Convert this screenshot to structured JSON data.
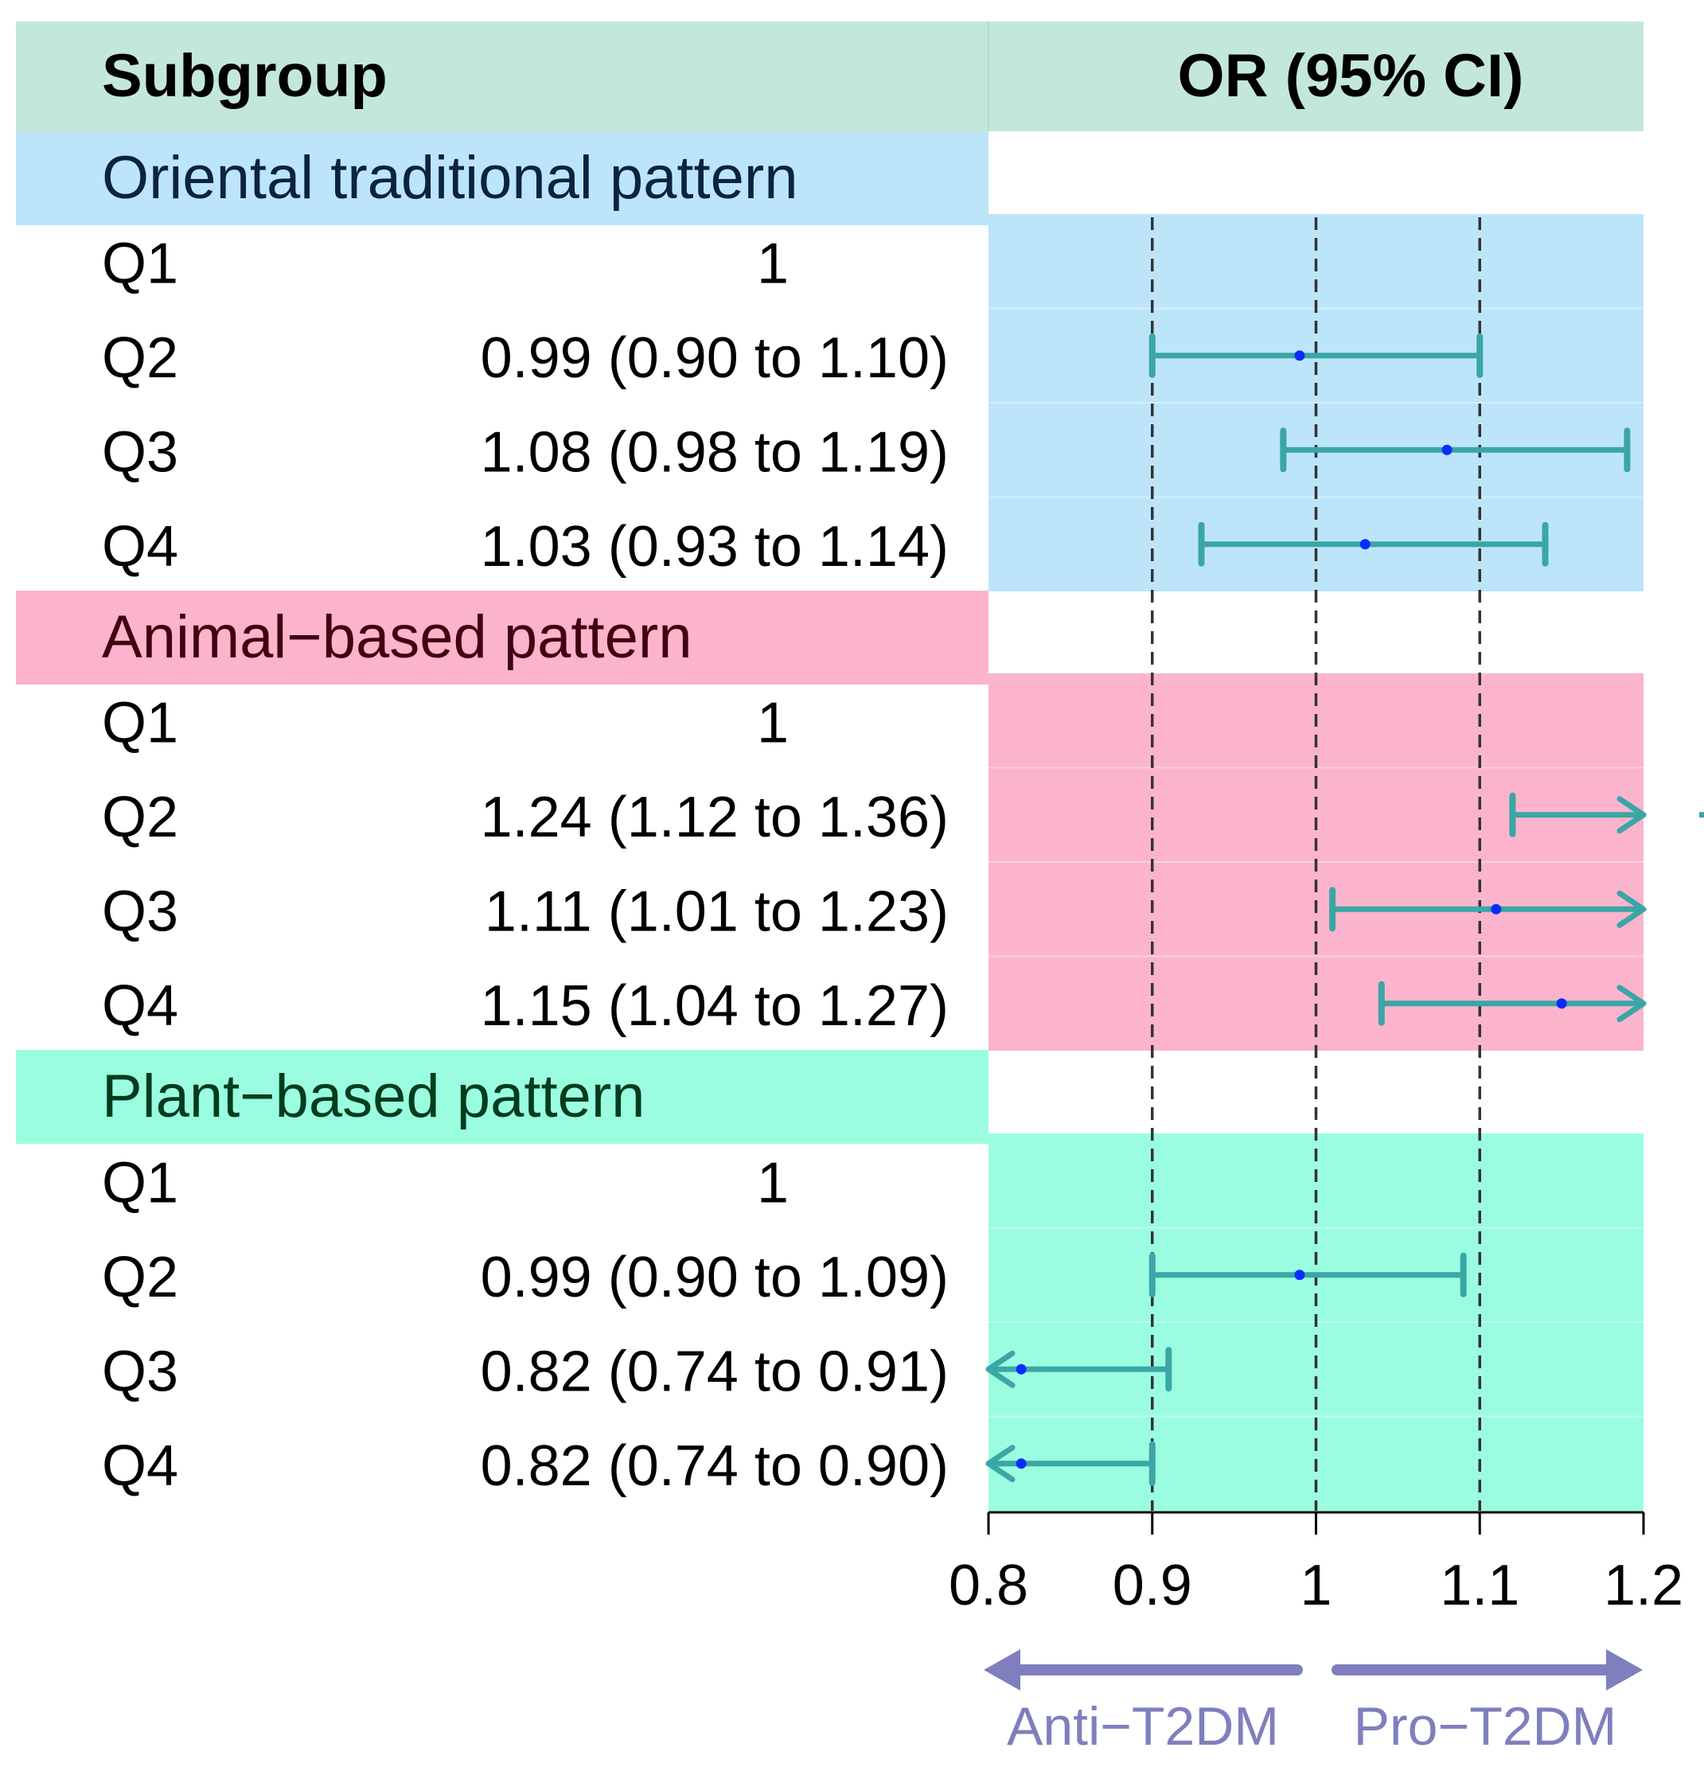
{
  "chart_data": {
    "type": "forest",
    "header": {
      "subgroup_label": "Subgroup",
      "or_label": "OR (95% CI)"
    },
    "x_axis": {
      "range": [
        0.8,
        1.2
      ],
      "ticks": [
        0.8,
        0.9,
        1.0,
        1.1,
        1.2
      ],
      "tick_labels": [
        "0.8",
        "0.9",
        "1",
        "1.1",
        "1.2"
      ],
      "reference_lines": [
        0.9,
        1.0,
        1.1
      ]
    },
    "direction_labels": {
      "left": "Anti−T2DM",
      "right": "Pro−T2DM"
    },
    "groups": [
      {
        "name": "Oriental traditional pattern",
        "label_bg": "#bde5fa",
        "label_color": "#0b2240",
        "panel_color": "#bde5fa",
        "rows": [
          {
            "label": "Q1",
            "text": "1",
            "or": null,
            "lo": null,
            "hi": null
          },
          {
            "label": "Q2",
            "text": "0.99 (0.90 to 1.10)",
            "or": 0.99,
            "lo": 0.9,
            "hi": 1.1
          },
          {
            "label": "Q3",
            "text": "1.08 (0.98 to 1.19)",
            "or": 1.08,
            "lo": 0.98,
            "hi": 1.19
          },
          {
            "label": "Q4",
            "text": "1.03 (0.93 to 1.14)",
            "or": 1.03,
            "lo": 0.93,
            "hi": 1.14
          }
        ]
      },
      {
        "name": "Animal−based pattern",
        "label_bg": "#fbb4cc",
        "label_color": "#400010",
        "panel_color": "#fbb4cc",
        "rows": [
          {
            "label": "Q1",
            "text": "1",
            "or": null,
            "lo": null,
            "hi": null
          },
          {
            "label": "Q2",
            "text": "1.24 (1.12 to 1.36)",
            "or": 1.24,
            "lo": 1.12,
            "hi": 1.36
          },
          {
            "label": "Q3",
            "text": "1.11 (1.01 to 1.23)",
            "or": 1.11,
            "lo": 1.01,
            "hi": 1.23
          },
          {
            "label": "Q4",
            "text": "1.15 (1.04 to 1.27)",
            "or": 1.15,
            "lo": 1.04,
            "hi": 1.27
          }
        ]
      },
      {
        "name": "Plant−based pattern",
        "label_bg": "#9bfde0",
        "label_color": "#003d1c",
        "panel_color": "#9bfde0",
        "rows": [
          {
            "label": "Q1",
            "text": "1",
            "or": null,
            "lo": null,
            "hi": null
          },
          {
            "label": "Q2",
            "text": "0.99 (0.90 to 1.09)",
            "or": 0.99,
            "lo": 0.9,
            "hi": 1.09
          },
          {
            "label": "Q3",
            "text": "0.82 (0.74 to 0.91)",
            "or": 0.82,
            "lo": 0.74,
            "hi": 0.91
          },
          {
            "label": "Q4",
            "text": "0.82 (0.74 to 0.90)",
            "or": 0.82,
            "lo": 0.74,
            "hi": 0.9
          }
        ]
      }
    ],
    "colors": {
      "header_bg": "#c3e8d9",
      "ci_line": "#3aa6a6",
      "point": "#0a2cff",
      "ref_line": "#333333",
      "axis": "#000000",
      "direction_arrow": "#7f7fbe",
      "direction_text": "#7f7fbe",
      "text": "#000000"
    }
  }
}
